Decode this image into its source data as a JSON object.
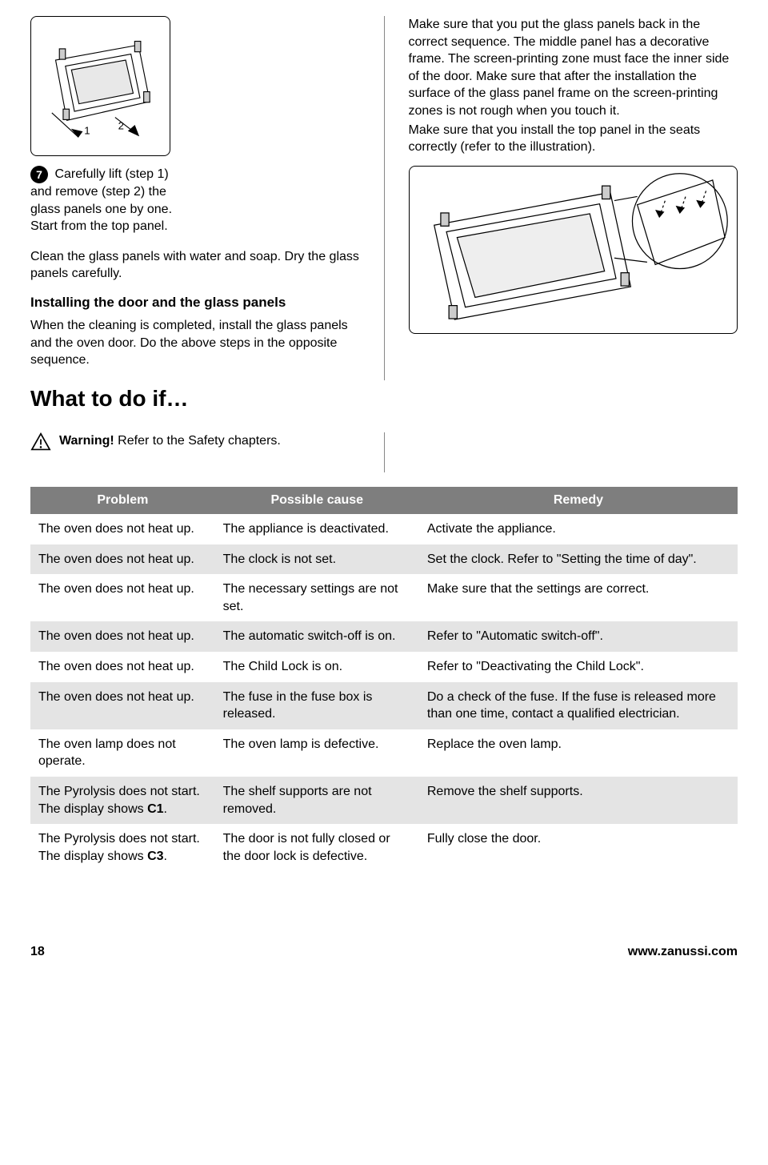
{
  "left": {
    "step7_num": "7",
    "step7_text": "Carefully lift (step 1) and remove (step 2) the glass panels one by one. Start from the top panel.",
    "clean_text": "Clean the glass panels with water and soap. Dry the glass panels carefully.",
    "install_head": "Installing the door and the glass panels",
    "install_text": "When the cleaning is completed, install the glass panels and the oven door. Do the above steps in the opposite sequence."
  },
  "right": {
    "para1": "Make sure that you put the glass panels back in the correct sequence. The middle panel has a decorative frame. The screen-printing zone must face the inner side of the door. Make sure that after the installation the surface of the glass panel frame on the screen-printing zones is not rough when you touch it.",
    "para2": "Make sure that you install the top panel in the seats correctly (refer to the illustration)."
  },
  "section_title": "What to do if…",
  "warning_bold": "Warning!",
  "warning_rest": " Refer to the Safety chapters.",
  "table": {
    "header_bg": "#7e7e7e",
    "row_alt_bg": "#e4e4e4",
    "columns": [
      "Problem",
      "Possible cause",
      "Remedy"
    ],
    "rows": [
      [
        "The oven does not heat up.",
        "The appliance is deactivated.",
        "Activate the appliance."
      ],
      [
        "The oven does not heat up.",
        "The clock is not set.",
        "Set the clock. Refer to \"Setting the time of day\"."
      ],
      [
        "The oven does not heat up.",
        "The necessary settings are not set.",
        "Make sure that the settings are correct."
      ],
      [
        "The oven does not heat up.",
        "The automatic switch-off is on.",
        "Refer to \"Automatic switch-off\"."
      ],
      [
        "The oven does not heat up.",
        "The Child Lock is on.",
        "Refer to \"Deactivating the Child Lock\"."
      ],
      [
        "The oven does not heat up.",
        "The fuse in the fuse box is released.",
        "Do a check of the fuse. If the fuse is released more than one time, contact a qualified electrician."
      ],
      [
        "The oven lamp does not operate.",
        "The oven lamp is defective.",
        "Replace the oven lamp."
      ],
      [
        "The Pyrolysis does not start. The display shows C1.",
        "The shelf supports are not removed.",
        "Remove the shelf supports."
      ],
      [
        "The Pyrolysis does not start. The display shows C3.",
        "The door is not fully closed or the door lock is defective.",
        "Fully close the door."
      ]
    ],
    "bold_fragments": {
      "7": "C1",
      "8": "C3"
    }
  },
  "footer": {
    "page": "18",
    "url": "www.zanussi.com"
  }
}
